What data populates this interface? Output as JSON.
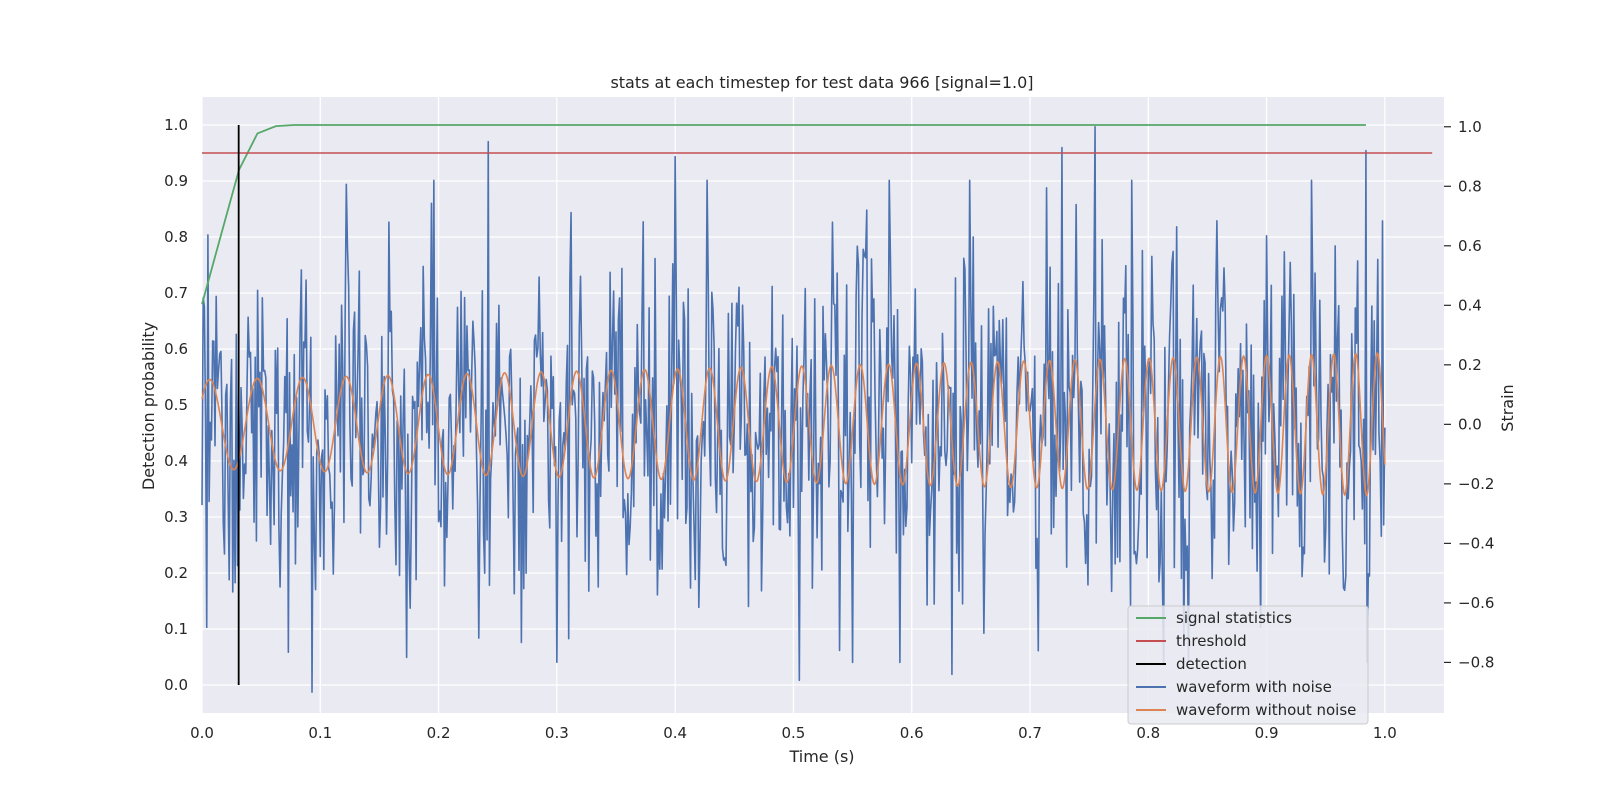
{
  "chart_data": {
    "type": "line",
    "title": "stats at each timestep for test data 966 [signal=1.0]",
    "xlabel": "Time (s)",
    "ylabel": "Detection probability",
    "ylabel_right": "Strain",
    "xlim": [
      0.0,
      1.05
    ],
    "ylim": [
      -0.05,
      1.05
    ],
    "ylim_right": [
      -0.97,
      1.1
    ],
    "x_ticks": [
      "0.0",
      "0.1",
      "0.2",
      "0.3",
      "0.4",
      "0.5",
      "0.6",
      "0.7",
      "0.8",
      "0.9",
      "1.0"
    ],
    "y_ticks": [
      "0.0",
      "0.1",
      "0.2",
      "0.3",
      "0.4",
      "0.5",
      "0.6",
      "0.7",
      "0.8",
      "0.9",
      "1.0"
    ],
    "y_ticks_right": [
      "−0.8",
      "−0.6",
      "−0.4",
      "−0.2",
      "0.0",
      "0.2",
      "0.4",
      "0.6",
      "0.8",
      "1.0"
    ],
    "grid": true,
    "legend_position": "lower-right",
    "colors": {
      "background": "#eaeaf2",
      "grid": "#ffffff",
      "signal_statistics": "#55a868",
      "threshold": "#c44e52",
      "detection": "#000000",
      "waveform_with_noise": "#4c72b0",
      "waveform_without_noise": "#dd8452"
    },
    "series": [
      {
        "name": "signal statistics",
        "axis": "left",
        "x": [
          0.0,
          0.0156,
          0.0313,
          0.0469,
          0.0625,
          0.0781,
          0.1,
          0.2,
          0.3,
          0.4,
          0.5,
          0.6,
          0.7,
          0.8,
          0.9,
          0.984
        ],
        "values": [
          0.68,
          0.8,
          0.92,
          0.985,
          0.998,
          1.0,
          1.0,
          1.0,
          1.0,
          1.0,
          1.0,
          1.0,
          1.0,
          1.0,
          1.0,
          1.0
        ]
      },
      {
        "name": "threshold",
        "axis": "left",
        "x": [
          0.0,
          1.04
        ],
        "values": [
          0.95,
          0.95
        ]
      },
      {
        "name": "detection",
        "axis": "left",
        "x": [
          0.031,
          0.031
        ],
        "values": [
          0.0,
          1.0
        ]
      },
      {
        "name": "waveform with noise",
        "axis": "right",
        "description_of_values": "noisy strain, 1000 samples from t=0 to t=1.0; peaks near t=0.242 (0.95), t=0.40 (0.90), t=0.727 (0.93), t=0.755 (1.0), t=0.984 (0.92); troughs near t=0.093 (-0.90), t=0.505 (-0.86), t=0.634 (-0.84)",
        "x_range": [
          0.0,
          1.0
        ],
        "value_range": [
          -0.9,
          1.0
        ]
      },
      {
        "name": "waveform without noise",
        "axis": "right",
        "description_of_values": "chirp sinusoid, amplitude rising from ~0.15 to ~0.24, frequency rising from ~24 Hz to ~55 Hz over t=0 to t=1.0",
        "x_range": [
          0.0,
          1.0
        ],
        "value_range": [
          -0.24,
          0.24
        ]
      }
    ]
  }
}
